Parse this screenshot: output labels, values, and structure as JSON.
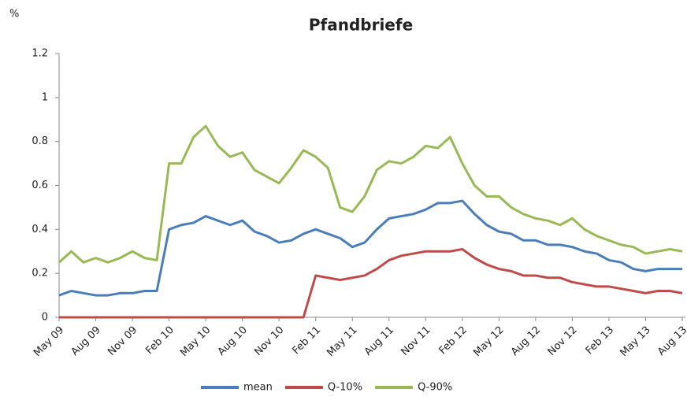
{
  "chart_data": {
    "type": "line",
    "title": "Pfandbriefe",
    "y_label": "%",
    "categories": [
      "May 09",
      null,
      null,
      "Aug 09",
      null,
      null,
      "Nov 09",
      null,
      null,
      "Feb 10",
      null,
      null,
      "May 10",
      null,
      null,
      "Aug 10",
      null,
      null,
      "Nov 10",
      null,
      null,
      "Feb 11",
      null,
      null,
      "May 11",
      null,
      null,
      "Aug 11",
      null,
      null,
      "Nov 11",
      null,
      null,
      "Feb 12",
      null,
      null,
      "May 12",
      null,
      null,
      "Aug 12",
      null,
      null,
      "Nov 12",
      null,
      null,
      "Feb 13",
      null,
      null,
      "May 13",
      null,
      null,
      "Aug 13"
    ],
    "series": [
      {
        "name": "mean",
        "color": "#4a7ebb",
        "values": [
          0.1,
          0.12,
          0.11,
          0.1,
          0.1,
          0.11,
          0.11,
          0.12,
          0.12,
          0.4,
          0.42,
          0.43,
          0.46,
          0.44,
          0.42,
          0.44,
          0.39,
          0.37,
          0.34,
          0.35,
          0.38,
          0.4,
          0.38,
          0.36,
          0.32,
          0.34,
          0.4,
          0.45,
          0.46,
          0.47,
          0.49,
          0.52,
          0.52,
          0.53,
          0.47,
          0.42,
          0.39,
          0.38,
          0.35,
          0.35,
          0.33,
          0.33,
          0.32,
          0.3,
          0.29,
          0.26,
          0.25,
          0.22,
          0.21,
          0.22,
          0.22,
          0.22
        ]
      },
      {
        "name": "Q-10%",
        "color": "#be4b48",
        "values": [
          0,
          0,
          0,
          0,
          0,
          0,
          0,
          0,
          0,
          0,
          0,
          0,
          0,
          0,
          0,
          0,
          0,
          0,
          0,
          0,
          0,
          0.19,
          0.18,
          0.17,
          0.18,
          0.19,
          0.22,
          0.26,
          0.28,
          0.29,
          0.3,
          0.3,
          0.3,
          0.31,
          0.27,
          0.24,
          0.22,
          0.21,
          0.19,
          0.19,
          0.18,
          0.18,
          0.16,
          0.15,
          0.14,
          0.14,
          0.13,
          0.12,
          0.11,
          0.12,
          0.12,
          0.11
        ]
      },
      {
        "name": "Q-90%",
        "color": "#98b954",
        "values": [
          0.25,
          0.3,
          0.25,
          0.27,
          0.25,
          0.27,
          0.3,
          0.27,
          0.26,
          0.7,
          0.7,
          0.82,
          0.87,
          0.78,
          0.73,
          0.75,
          0.67,
          0.64,
          0.61,
          0.68,
          0.76,
          0.73,
          0.68,
          0.5,
          0.48,
          0.55,
          0.67,
          0.71,
          0.7,
          0.73,
          0.78,
          0.77,
          0.82,
          0.7,
          0.6,
          0.55,
          0.55,
          0.5,
          0.47,
          0.45,
          0.44,
          0.42,
          0.45,
          0.4,
          0.37,
          0.35,
          0.33,
          0.32,
          0.29,
          0.3,
          0.31,
          0.3
        ]
      }
    ],
    "ylim": [
      0,
      1.2
    ],
    "yticks": [
      0,
      0.2,
      0.4,
      0.6,
      0.8,
      1,
      1.2
    ],
    "grid": false,
    "legend": "bottom"
  }
}
